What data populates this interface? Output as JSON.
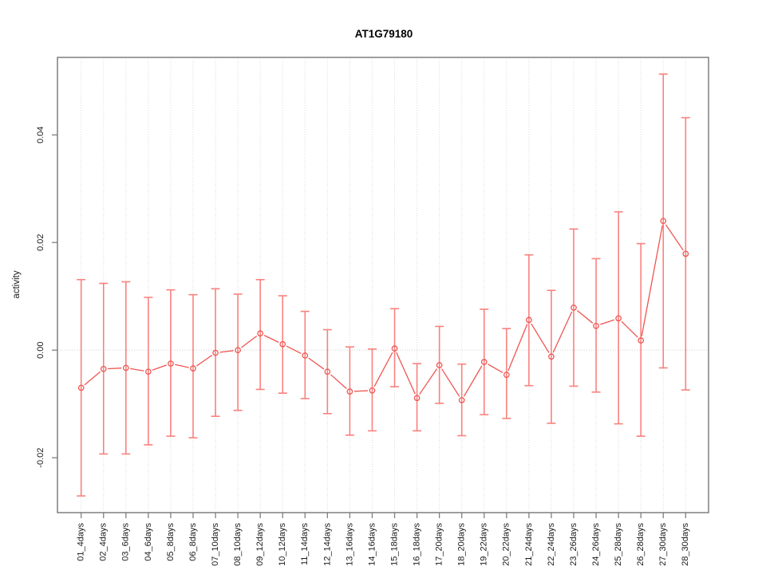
{
  "title": "AT1G79180",
  "chart_data": {
    "type": "line",
    "title": "AT1G79180",
    "xlabel": "",
    "ylabel": "activity",
    "legend": "none",
    "grid": "vertical dotted gridlines at each category; dotted horizontal line at y=0",
    "ylim": [
      -0.0302,
      0.0544
    ],
    "yticks": [
      -0.02,
      0.0,
      0.02,
      0.04
    ],
    "ytick_labels": [
      "-0.02",
      "0.00",
      "0.02",
      "0.04"
    ],
    "categories": [
      "01_4days",
      "02_4days",
      "03_6days",
      "04_6days",
      "05_8days",
      "06_8days",
      "07_10days",
      "08_10days",
      "09_12days",
      "10_12days",
      "11_14days",
      "12_14days",
      "13_16days",
      "14_16days",
      "15_18days",
      "16_18days",
      "17_20days",
      "18_20days",
      "19_22days",
      "20_22days",
      "21_24days",
      "22_24days",
      "23_26days",
      "24_26days",
      "25_28days",
      "26_28days",
      "27_30days",
      "28_30days"
    ],
    "series": [
      {
        "name": "activity",
        "marker": "open-circle",
        "values": [
          -0.007,
          -0.0035,
          -0.0033,
          -0.004,
          -0.0025,
          -0.0034,
          -0.0005,
          0.0,
          0.0031,
          0.0011,
          -0.001,
          -0.004,
          -0.0077,
          -0.0075,
          0.0003,
          -0.0089,
          -0.0028,
          -0.0093,
          -0.0022,
          -0.0046,
          0.0056,
          -0.0012,
          0.0079,
          0.0045,
          0.0059,
          0.0018,
          0.024,
          0.0179
        ],
        "error_low": [
          -0.0271,
          -0.0193,
          -0.0193,
          -0.0176,
          -0.016,
          -0.0163,
          -0.0123,
          -0.0112,
          -0.0073,
          -0.008,
          -0.009,
          -0.0118,
          -0.0158,
          -0.015,
          -0.0068,
          -0.015,
          -0.0099,
          -0.0159,
          -0.012,
          -0.0127,
          -0.0066,
          -0.0136,
          -0.0067,
          -0.0078,
          -0.0137,
          -0.016,
          -0.0033,
          -0.0074
        ],
        "error_high": [
          0.0131,
          0.0124,
          0.0127,
          0.0098,
          0.0112,
          0.0103,
          0.0114,
          0.0104,
          0.0131,
          0.0101,
          0.0072,
          0.0038,
          0.0006,
          0.0002,
          0.0077,
          -0.0025,
          0.0044,
          -0.0026,
          0.0076,
          0.004,
          0.0177,
          0.0111,
          0.0225,
          0.017,
          0.0257,
          0.0198,
          0.0513,
          0.0432
        ]
      }
    ],
    "colors": {
      "line": "#ee5552",
      "marker": "#ee5552",
      "errorbar": "#f8827e",
      "grid": "#dadada",
      "zero_line": "#cfcfcf",
      "box": "#7f7f7f",
      "tick": "#7f7f7f",
      "text": "#1a1a1a"
    }
  }
}
